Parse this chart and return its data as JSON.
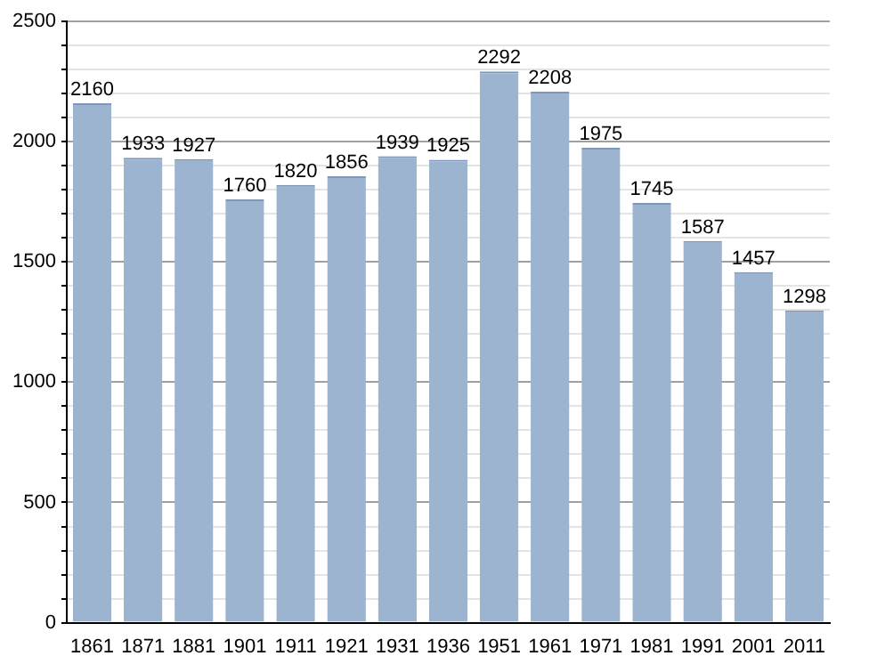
{
  "chart_data": {
    "type": "bar",
    "categories": [
      "1861",
      "1871",
      "1881",
      "1901",
      "1911",
      "1921",
      "1931",
      "1936",
      "1951",
      "1961",
      "1971",
      "1981",
      "1991",
      "2001",
      "2011"
    ],
    "values": [
      2160,
      1933,
      1927,
      1760,
      1820,
      1856,
      1939,
      1925,
      2292,
      2208,
      1975,
      1745,
      1587,
      1457,
      1298
    ],
    "color": "#9db4d0",
    "ylim": [
      0,
      2500
    ],
    "yticks": [
      0,
      {
        "value": 100,
        "label": null
      },
      {
        "value": 200,
        "label": null
      },
      {
        "value": 300,
        "label": null
      },
      {
        "value": 400,
        "label": null
      },
      500,
      {
        "value": 600,
        "label": null
      },
      {
        "value": 700,
        "label": null
      },
      {
        "value": 800,
        "label": null
      },
      {
        "value": 900,
        "label": null
      },
      1000,
      {
        "value": 1100,
        "label": null
      },
      {
        "value": 1200,
        "label": null
      },
      {
        "value": 1300,
        "label": null
      },
      {
        "value": 1400,
        "label": null
      },
      1500,
      {
        "value": 1600,
        "label": null
      },
      {
        "value": 1700,
        "label": null
      },
      {
        "value": 1800,
        "label": null
      },
      {
        "value": 1900,
        "label": null
      },
      2000,
      {
        "value": 2100,
        "label": null
      },
      {
        "value": 2200,
        "label": null
      },
      {
        "value": 2300,
        "label": null
      },
      {
        "value": 2400,
        "label": null
      },
      2500
    ],
    "grid": "y",
    "data_labels": true
  }
}
